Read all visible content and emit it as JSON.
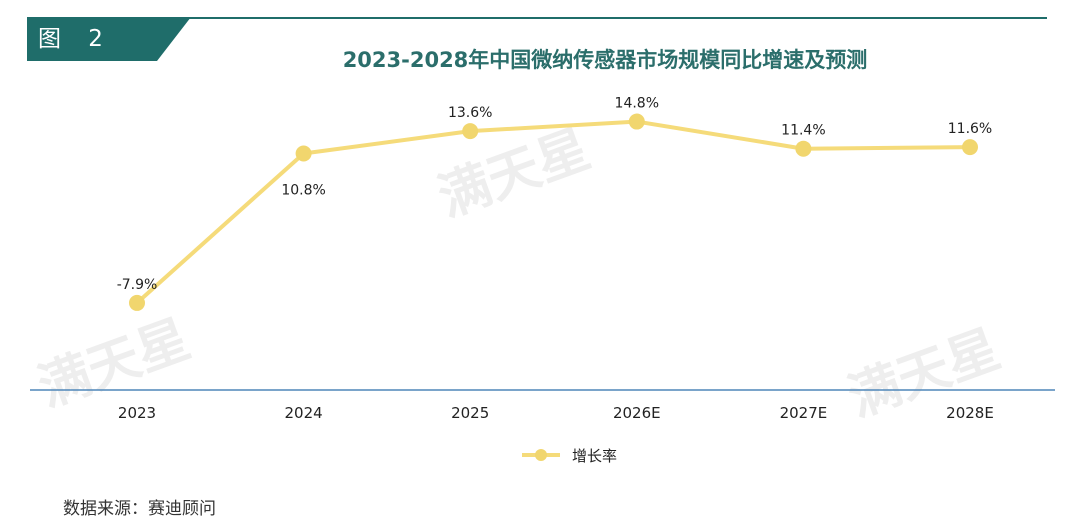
{
  "figure_label": "图 2",
  "source_note": "数据来源：赛迪顾问",
  "watermark": "满天星",
  "colors": {
    "tab": "#1f6d6a",
    "title": "#2b6e6b",
    "line": "#f5db7a",
    "marker": "#f1d66e",
    "axis": "#4e86b8"
  },
  "chart_data": {
    "type": "line",
    "title": "2023-2028年中国微纳传感器市场规模同比增速及预测",
    "categories": [
      "2023",
      "2024",
      "2025",
      "2026E",
      "2027E",
      "2028E"
    ],
    "series": [
      {
        "name": "增长率",
        "values": [
          -7.9,
          10.8,
          13.6,
          14.8,
          11.4,
          11.6
        ],
        "labels": [
          "-7.9%",
          "10.8%",
          "13.6%",
          "14.8%",
          "11.4%",
          "11.6%"
        ]
      }
    ],
    "ylim": [
      -30,
      20
    ],
    "grid": false,
    "legend_position": "bottom"
  }
}
